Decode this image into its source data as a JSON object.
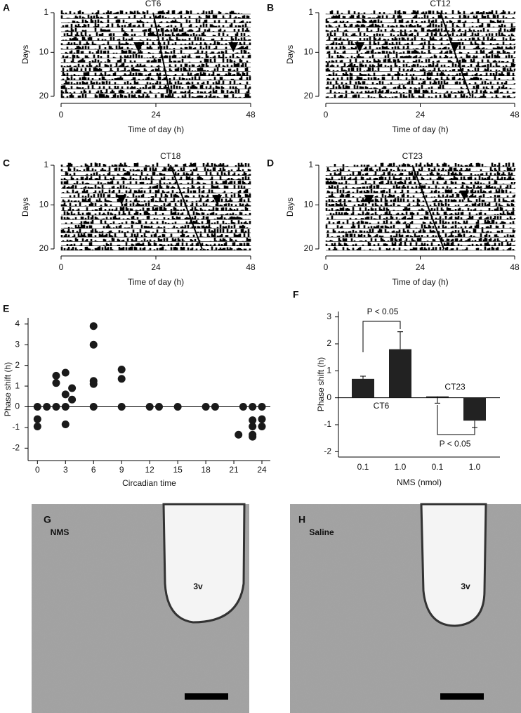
{
  "chart_data": [
    {
      "panel": "A",
      "type": "actogram",
      "title": "CT6",
      "xlabel": "Time of day (h)",
      "ylabel": "Days",
      "xlim": [
        0,
        48
      ],
      "xticks": [
        0,
        24,
        48
      ],
      "ylim": [
        1,
        20
      ],
      "yticks": [
        1,
        10,
        20
      ],
      "y_reversed": true,
      "phase_line": {
        "x": [
          23.3,
          27.7
        ],
        "y": [
          1,
          20
        ]
      },
      "pulse": {
        "x": [
          19.6,
          43.6
        ],
        "y": [
          9,
          9
        ]
      }
    },
    {
      "panel": "B",
      "type": "actogram",
      "title": "CT12",
      "xlabel": "Time of day (h)",
      "ylabel": "Days",
      "xlim": [
        0,
        48
      ],
      "xticks": [
        0,
        24,
        48
      ],
      "ylim": [
        1,
        20
      ],
      "yticks": [
        1,
        10,
        20
      ],
      "y_reversed": true,
      "phase_line": {
        "x": [
          29.1,
          36.8
        ],
        "y": [
          1,
          20
        ]
      },
      "pulse": {
        "x": [
          8.6,
          32.8
        ],
        "y": [
          9,
          9
        ]
      }
    },
    {
      "panel": "C",
      "type": "actogram",
      "title": "CT18",
      "xlabel": "Time of day (h)",
      "ylabel": "Days",
      "xlim": [
        0,
        48
      ],
      "xticks": [
        0,
        24,
        48
      ],
      "ylim": [
        1,
        20
      ],
      "yticks": [
        1,
        10,
        20
      ],
      "y_reversed": true,
      "phase_line": {
        "x": [
          27.7,
          35.7
        ],
        "y": [
          1,
          20
        ]
      },
      "pulse": {
        "x": [
          15.3,
          39.5
        ],
        "y": [
          9,
          9
        ]
      }
    },
    {
      "panel": "D",
      "type": "actogram",
      "title": "CT23",
      "xlabel": "Time of day (h)",
      "ylabel": "Days",
      "xlim": [
        0,
        48
      ],
      "xticks": [
        0,
        24,
        48
      ],
      "ylim": [
        1,
        20
      ],
      "yticks": [
        1,
        10,
        20
      ],
      "y_reversed": true,
      "phase_line": {
        "x": [
          22,
          30
        ],
        "y": [
          1,
          20
        ]
      },
      "pulse": {
        "x": [
          11,
          35.2
        ],
        "y": [
          9,
          8
        ]
      }
    },
    {
      "panel": "E",
      "type": "scatter",
      "xlabel": "Circadian time",
      "ylabel": "Phase shift (h)",
      "xlim": [
        -1,
        24.9
      ],
      "ylim": [
        -2.6,
        4.3
      ],
      "xticks": [
        0,
        3,
        6,
        9,
        12,
        15,
        18,
        21,
        24
      ],
      "yticks": [
        -2,
        -1,
        0,
        1,
        2,
        3,
        4
      ],
      "color": "#1a1a1a",
      "x": [
        0,
        0,
        0,
        1,
        2,
        2,
        2,
        3,
        3,
        3,
        3,
        3.7,
        3.7,
        6,
        6,
        6,
        6,
        6,
        9,
        9,
        9,
        12,
        13,
        15,
        18,
        19,
        21.5,
        22,
        23,
        23,
        23,
        23,
        23,
        24,
        24,
        24
      ],
      "y": [
        -0.6,
        -0.95,
        0,
        0,
        1.5,
        1.15,
        0,
        1.65,
        0.6,
        0,
        -0.85,
        0.9,
        0.35,
        3.9,
        3,
        1.25,
        1.1,
        0,
        1.8,
        1.35,
        0,
        0,
        0,
        0,
        0,
        0,
        -1.35,
        0,
        -0.65,
        -0.95,
        -1.35,
        -1.45,
        0,
        -0.6,
        -0.95,
        0
      ]
    },
    {
      "panel": "F",
      "type": "bar",
      "xlabel": "NMS (nmol)",
      "ylabel": "Phase shift (h)",
      "categories": [
        "0.1",
        "1.0",
        "0.1",
        "1.0"
      ],
      "values": [
        0.7,
        1.8,
        0.05,
        -0.85
      ],
      "errors": [
        0.1,
        0.65,
        0.25,
        0.25
      ],
      "color": "#222222",
      "ylim": [
        -2.2,
        3.2
      ],
      "yticks": [
        -2,
        -1,
        0,
        1,
        2,
        3
      ],
      "annotations": [
        "P < 0.05",
        "CT6",
        "CT23",
        "P < 0.05"
      ]
    }
  ],
  "micrographs": [
    {
      "panel": "G",
      "label": "NMS",
      "ventricle": "3v"
    },
    {
      "panel": "H",
      "label": "Saline",
      "ventricle": "3v"
    }
  ]
}
